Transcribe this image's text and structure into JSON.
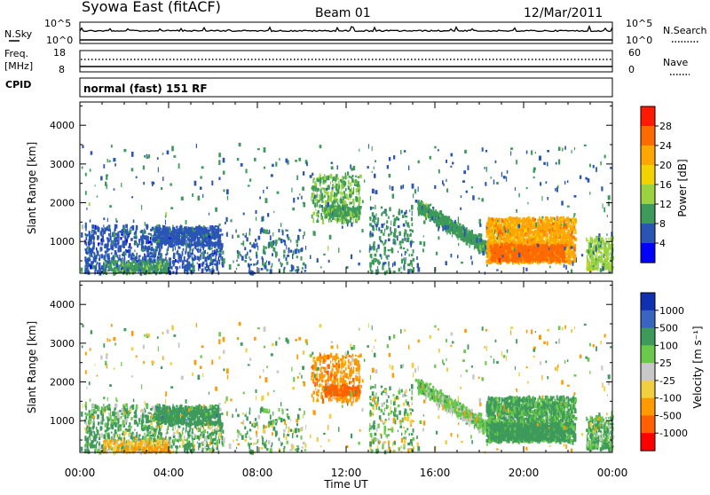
{
  "header": {
    "station": "Syowa East (fitACF)",
    "beam": "Beam 01",
    "date": "12/Mar/2011"
  },
  "top_panel": {
    "left_label": "N.Sky",
    "left_ticks": [
      "10^5",
      "10^0"
    ],
    "right_label": "N.Search",
    "right_ticks": [
      "10^5",
      "10^0"
    ]
  },
  "freq_panel": {
    "left_label_1": "Freq.",
    "left_label_2": "[MHz]",
    "left_ticks": [
      "18",
      "8"
    ],
    "right_label": "Nave",
    "right_ticks": [
      "60",
      "0"
    ]
  },
  "cpid": {
    "label": "CPID",
    "value": "normal (fast) 151 RF"
  },
  "x_axis": {
    "label": "Time UT",
    "ticks": [
      "00:00",
      "04:00",
      "08:00",
      "12:00",
      "16:00",
      "20:00",
      "00:00"
    ]
  },
  "y_axis": {
    "label": "Slant Range [km]",
    "ticks": [
      "4000",
      "3000",
      "2000",
      "1000"
    ]
  },
  "power_colorbar": {
    "label": "Power [dB]",
    "ticks": [
      "28",
      "24",
      "20",
      "16",
      "12",
      "8",
      "4"
    ],
    "colors": [
      "#ff1a00",
      "#ff6a00",
      "#ffa600",
      "#f2d200",
      "#9ad240",
      "#3d9a5a",
      "#2a55b5",
      "#0000ff"
    ]
  },
  "velocity_colorbar": {
    "label": "Velocity [m s⁻¹]",
    "ticks": [
      "1000",
      "500",
      "100",
      "25",
      "-25",
      "-100",
      "-500",
      "-1000"
    ],
    "colors": [
      "#1030b0",
      "#3a64c2",
      "#3d9a5a",
      "#6ac84a",
      "#c8c8c8",
      "#f0d040",
      "#ff9a00",
      "#ff6000",
      "#ff0000"
    ]
  },
  "chart_data": [
    {
      "type": "heatmap",
      "title": "Power",
      "xlabel": "Time UT",
      "ylabel": "Slant Range [km]",
      "xlim": [
        "00:00",
        "24:00"
      ],
      "ylim": [
        180,
        4600
      ],
      "colorbar": {
        "label": "Power [dB]",
        "range": [
          0,
          32
        ]
      },
      "regions": [
        {
          "t": [
            0.2,
            6.4
          ],
          "r": [
            180,
            1400
          ],
          "power": 8
        },
        {
          "t": [
            3.3,
            6.3
          ],
          "r": [
            900,
            1400
          ],
          "power": 6
        },
        {
          "t": [
            10.5,
            12.5
          ],
          "r": [
            1400,
            2600
          ],
          "power": 12
        },
        {
          "t": [
            15.2,
            19.0
          ],
          "r": [
            600,
            2000
          ],
          "power": 10
        },
        {
          "t": [
            18.5,
            22.3
          ],
          "r": [
            500,
            1600
          ],
          "power": 24
        },
        {
          "t": [
            22.8,
            24.0
          ],
          "r": [
            300,
            1100
          ],
          "power": 16
        }
      ]
    },
    {
      "type": "heatmap",
      "title": "Velocity",
      "xlabel": "Time UT",
      "ylabel": "Slant Range [km]",
      "xlim": [
        "00:00",
        "24:00"
      ],
      "ylim": [
        180,
        4600
      ],
      "colorbar": {
        "label": "Velocity [m s⁻¹]",
        "range": [
          -1000,
          1000
        ]
      },
      "regions": [
        {
          "t": [
            0.2,
            6.4
          ],
          "r": [
            180,
            1400
          ],
          "velocity": 200
        },
        {
          "t": [
            11.0,
            12.5
          ],
          "r": [
            1500,
            2600
          ],
          "velocity": -500
        },
        {
          "t": [
            15.2,
            18.5
          ],
          "r": [
            600,
            2000
          ],
          "velocity": 100
        },
        {
          "t": [
            18.5,
            22.3
          ],
          "r": [
            600,
            1600
          ],
          "velocity": 150
        },
        {
          "t": [
            22.8,
            24.0
          ],
          "r": [
            300,
            1100
          ],
          "velocity": 100
        }
      ]
    }
  ]
}
